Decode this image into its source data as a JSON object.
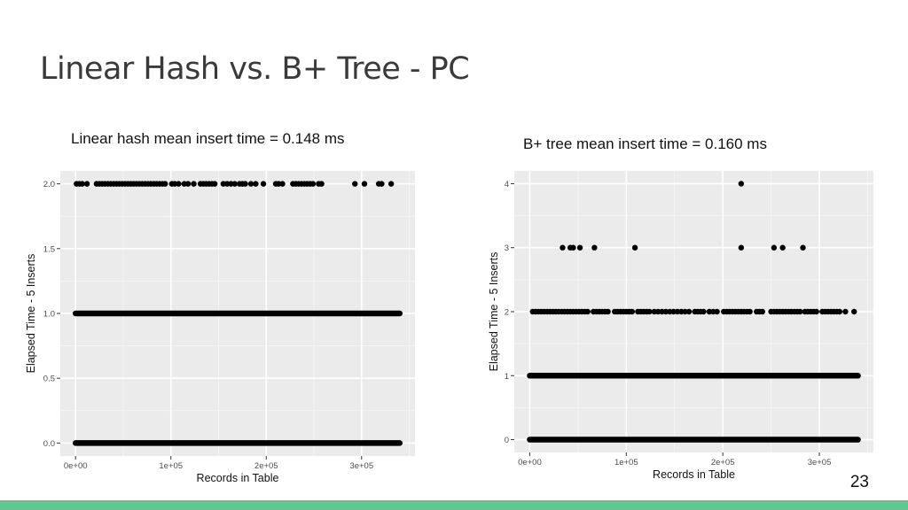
{
  "slide": {
    "title": "Linear Hash vs. B+ Tree - PC",
    "page_number": "23",
    "footer_color": "#5fc890"
  },
  "chart_data": [
    {
      "type": "scatter",
      "title": "Linear hash mean insert time = 0.148 ms",
      "xlabel": "Records in Table",
      "ylabel": "Elapsed Time - 5 Inserts",
      "xlim": [
        -16000,
        356000
      ],
      "ylim": [
        -0.1,
        2.1
      ],
      "x_ticks": [
        0,
        100000,
        200000,
        300000
      ],
      "x_tick_labels": [
        "0e+00",
        "1e+05",
        "2e+05",
        "3e+05"
      ],
      "y_ticks": [
        0,
        0.5,
        1,
        1.5,
        2
      ],
      "y_tick_labels": [
        "0.0",
        "0.5",
        "1.0",
        "1.5",
        "2.0"
      ],
      "grid": true,
      "panel_color": "#ebebeb",
      "point_color": "#000000",
      "series": [
        {
          "segments": [
            {
              "y": 0,
              "from": 0,
              "to": 340000
            },
            {
              "y": 1,
              "from": 0,
              "to": 340000
            }
          ],
          "points": [
            [
              1000,
              2
            ],
            [
              4000,
              2
            ],
            [
              7000,
              2
            ],
            [
              12000,
              2
            ],
            [
              22000,
              2
            ],
            [
              25000,
              2
            ],
            [
              28000,
              2
            ],
            [
              31000,
              2
            ],
            [
              34000,
              2
            ],
            [
              37000,
              2
            ],
            [
              40000,
              2
            ],
            [
              43000,
              2
            ],
            [
              46000,
              2
            ],
            [
              49000,
              2
            ],
            [
              52000,
              2
            ],
            [
              55000,
              2
            ],
            [
              58000,
              2
            ],
            [
              61000,
              2
            ],
            [
              64000,
              2
            ],
            [
              67000,
              2
            ],
            [
              70000,
              2
            ],
            [
              73000,
              2
            ],
            [
              76000,
              2
            ],
            [
              79000,
              2
            ],
            [
              82000,
              2
            ],
            [
              85000,
              2
            ],
            [
              88000,
              2
            ],
            [
              91000,
              2
            ],
            [
              94000,
              2
            ],
            [
              101000,
              2
            ],
            [
              104000,
              2
            ],
            [
              108000,
              2
            ],
            [
              114000,
              2
            ],
            [
              118000,
              2
            ],
            [
              124000,
              2
            ],
            [
              131000,
              2
            ],
            [
              134000,
              2
            ],
            [
              137000,
              2
            ],
            [
              140000,
              2
            ],
            [
              143000,
              2
            ],
            [
              146000,
              2
            ],
            [
              155000,
              2
            ],
            [
              159000,
              2
            ],
            [
              163000,
              2
            ],
            [
              167000,
              2
            ],
            [
              172000,
              2
            ],
            [
              175000,
              2
            ],
            [
              178000,
              2
            ],
            [
              184000,
              2
            ],
            [
              189000,
              2
            ],
            [
              197000,
              2
            ],
            [
              210000,
              2
            ],
            [
              213000,
              2
            ],
            [
              217000,
              2
            ],
            [
              228000,
              2
            ],
            [
              231000,
              2
            ],
            [
              234000,
              2
            ],
            [
              237000,
              2
            ],
            [
              240000,
              2
            ],
            [
              243000,
              2
            ],
            [
              246000,
              2
            ],
            [
              249000,
              2
            ],
            [
              255000,
              2
            ],
            [
              258000,
              2
            ],
            [
              293000,
              2
            ],
            [
              303000,
              2
            ],
            [
              318000,
              2
            ],
            [
              321000,
              2
            ],
            [
              331000,
              2
            ]
          ]
        }
      ]
    },
    {
      "type": "scatter",
      "title": "B+ tree mean insert time = 0.160 ms",
      "xlabel": "Records in Table",
      "ylabel": "Elapsed Time - 5 Inserts",
      "xlim": [
        -16000,
        356000
      ],
      "ylim": [
        -0.2,
        4.2
      ],
      "x_ticks": [
        0,
        100000,
        200000,
        300000
      ],
      "x_tick_labels": [
        "0e+00",
        "1e+05",
        "2e+05",
        "3e+05"
      ],
      "y_ticks": [
        0,
        1,
        2,
        3,
        4
      ],
      "y_tick_labels": [
        "0",
        "1",
        "2",
        "3",
        "4"
      ],
      "grid": true,
      "panel_color": "#ebebeb",
      "point_color": "#000000",
      "series": [
        {
          "segments": [
            {
              "y": 0,
              "from": 0,
              "to": 340000
            },
            {
              "y": 1,
              "from": 0,
              "to": 340000
            }
          ],
          "points": [
            [
              34000,
              3
            ],
            [
              42000,
              3
            ],
            [
              45000,
              3
            ],
            [
              52000,
              3
            ],
            [
              67000,
              3
            ],
            [
              109000,
              3
            ],
            [
              219000,
              3
            ],
            [
              253000,
              3
            ],
            [
              262000,
              3
            ],
            [
              283000,
              3
            ],
            [
              219000,
              4
            ],
            [
              3000,
              2
            ],
            [
              6000,
              2
            ],
            [
              9000,
              2
            ],
            [
              12000,
              2
            ],
            [
              15000,
              2
            ],
            [
              18000,
              2
            ],
            [
              21000,
              2
            ],
            [
              24000,
              2
            ],
            [
              27000,
              2
            ],
            [
              30000,
              2
            ],
            [
              33000,
              2
            ],
            [
              36000,
              2
            ],
            [
              39000,
              2
            ],
            [
              42000,
              2
            ],
            [
              45000,
              2
            ],
            [
              48000,
              2
            ],
            [
              51000,
              2
            ],
            [
              54000,
              2
            ],
            [
              57000,
              2
            ],
            [
              60000,
              2
            ],
            [
              66000,
              2
            ],
            [
              69000,
              2
            ],
            [
              72000,
              2
            ],
            [
              75000,
              2
            ],
            [
              78000,
              2
            ],
            [
              81000,
              2
            ],
            [
              88000,
              2
            ],
            [
              91000,
              2
            ],
            [
              94000,
              2
            ],
            [
              97000,
              2
            ],
            [
              100000,
              2
            ],
            [
              103000,
              2
            ],
            [
              106000,
              2
            ],
            [
              112000,
              2
            ],
            [
              115000,
              2
            ],
            [
              118000,
              2
            ],
            [
              121000,
              2
            ],
            [
              124000,
              2
            ],
            [
              129000,
              2
            ],
            [
              133000,
              2
            ],
            [
              137000,
              2
            ],
            [
              141000,
              2
            ],
            [
              145000,
              2
            ],
            [
              149000,
              2
            ],
            [
              153000,
              2
            ],
            [
              157000,
              2
            ],
            [
              161000,
              2
            ],
            [
              165000,
              2
            ],
            [
              171000,
              2
            ],
            [
              174000,
              2
            ],
            [
              177000,
              2
            ],
            [
              180000,
              2
            ],
            [
              186000,
              2
            ],
            [
              190000,
              2
            ],
            [
              194000,
              2
            ],
            [
              201000,
              2
            ],
            [
              204000,
              2
            ],
            [
              207000,
              2
            ],
            [
              210000,
              2
            ],
            [
              213000,
              2
            ],
            [
              216000,
              2
            ],
            [
              219000,
              2
            ],
            [
              222000,
              2
            ],
            [
              225000,
              2
            ],
            [
              228000,
              2
            ],
            [
              235000,
              2
            ],
            [
              238000,
              2
            ],
            [
              241000,
              2
            ],
            [
              250000,
              2
            ],
            [
              253000,
              2
            ],
            [
              256000,
              2
            ],
            [
              259000,
              2
            ],
            [
              262000,
              2
            ],
            [
              265000,
              2
            ],
            [
              268000,
              2
            ],
            [
              271000,
              2
            ],
            [
              274000,
              2
            ],
            [
              277000,
              2
            ],
            [
              280000,
              2
            ],
            [
              285000,
              2
            ],
            [
              288000,
              2
            ],
            [
              291000,
              2
            ],
            [
              294000,
              2
            ],
            [
              297000,
              2
            ],
            [
              303000,
              2
            ],
            [
              306000,
              2
            ],
            [
              309000,
              2
            ],
            [
              312000,
              2
            ],
            [
              315000,
              2
            ],
            [
              318000,
              2
            ],
            [
              321000,
              2
            ],
            [
              327000,
              2
            ],
            [
              336000,
              2
            ]
          ]
        }
      ]
    }
  ]
}
